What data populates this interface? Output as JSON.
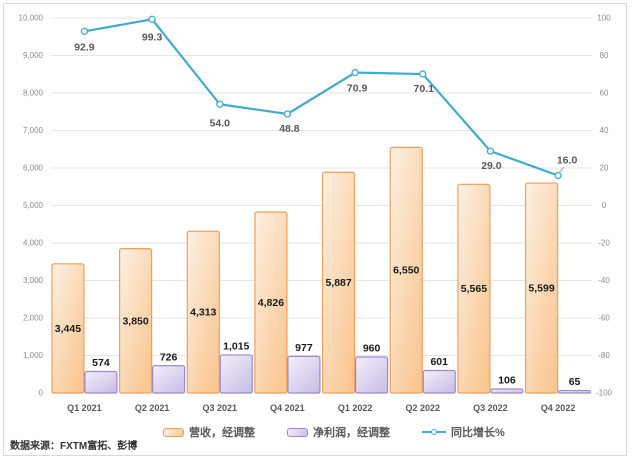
{
  "source_note": "数据来源：FXTM富拓、彭博",
  "legend": {
    "items": [
      {
        "label": "营收，经调整",
        "swatch": "bar-orange"
      },
      {
        "label": "净利润，经调整",
        "swatch": "bar-purple"
      },
      {
        "label": "同比增长%",
        "swatch": "line-blue"
      }
    ]
  },
  "colors": {
    "frame_border": "#D9D9D9",
    "grid": "#E6E6E6",
    "axis_text": "#8C8C8C",
    "label_text": "#595959",
    "value_text": "#1A1A1A",
    "bar_revenue_border": "#EDA05E",
    "bar_revenue_fill_light": "#FCF0E2",
    "bar_revenue_fill_dark": "#FAC691",
    "bar_profit_border": "#9B8BC4",
    "bar_profit_fill_light": "#F3EFFA",
    "bar_profit_fill_dark": "#CCBEE6",
    "line": "#41ABCE",
    "marker_fill": "#FFFFFF",
    "leader": "#A6A6A6"
  },
  "chart_data": {
    "type": "combo",
    "categories": [
      "Q1 2021",
      "Q2 2021",
      "Q3 2021",
      "Q4 2021",
      "Q1 2022",
      "Q2 2022",
      "Q3 2022",
      "Q4 2022"
    ],
    "series": [
      {
        "name": "营收，经调整",
        "type": "bar",
        "axis": "left",
        "values": [
          3445,
          3850,
          4313,
          4826,
          5887,
          6550,
          5565,
          5599
        ],
        "labels": [
          "3,445",
          "3,850",
          "4,313",
          "4,826",
          "5,887",
          "6,550",
          "5,565",
          "5,599"
        ]
      },
      {
        "name": "净利润，经调整",
        "type": "bar",
        "axis": "left",
        "values": [
          574,
          726,
          1015,
          977,
          960,
          601,
          106,
          65
        ],
        "labels": [
          "574",
          "726",
          "1,015",
          "977",
          "960",
          "601",
          "106",
          "65"
        ]
      },
      {
        "name": "同比增长%",
        "type": "line",
        "axis": "right",
        "values": [
          92.9,
          99.3,
          54.0,
          48.8,
          70.9,
          70.1,
          29.0,
          16.0
        ],
        "labels": [
          "92.9",
          "99.3",
          "54.0",
          "48.8",
          "70.9",
          "70.1",
          "29.0",
          "16.0"
        ]
      }
    ],
    "left_axis": {
      "min": 0,
      "max": 10000,
      "step": 1000,
      "tick_labels": [
        "0",
        "1,000",
        "2,000",
        "3,000",
        "4,000",
        "5,000",
        "6,000",
        "7,000",
        "8,000",
        "9,000",
        "10,000"
      ]
    },
    "right_axis": {
      "min": -100,
      "max": 100,
      "step": 20,
      "tick_labels": [
        "-100",
        "-80",
        "-60",
        "-40",
        "-20",
        "0",
        "20",
        "40",
        "60",
        "80",
        "100"
      ]
    },
    "grid": true,
    "legend_position": "bottom",
    "title": ""
  }
}
